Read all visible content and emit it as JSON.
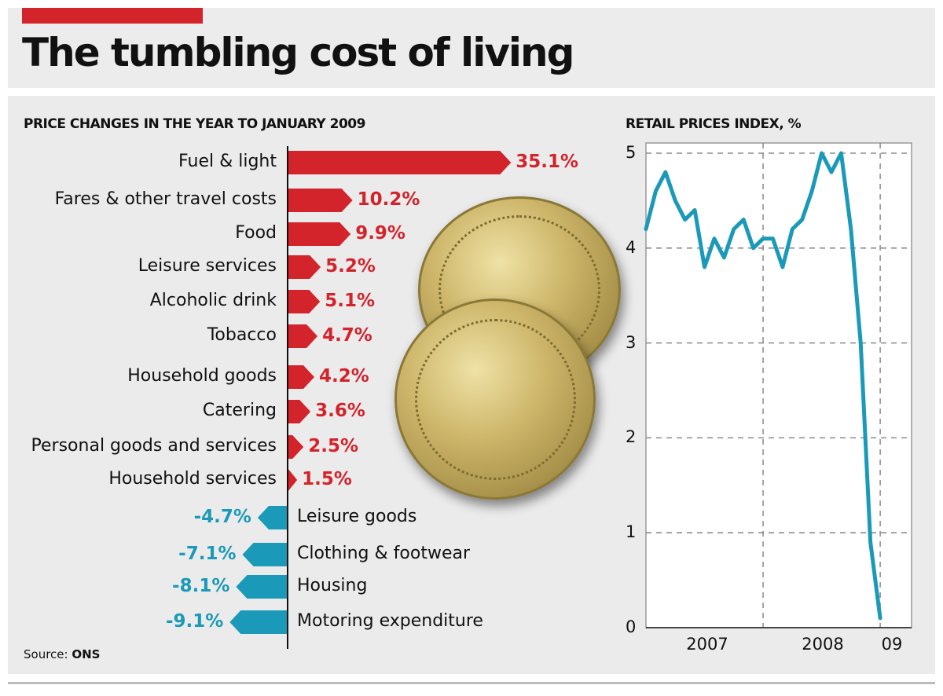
{
  "title": "The tumbling cost of living",
  "source": {
    "label": "Source:",
    "value": "ONS"
  },
  "colors": {
    "accent": "#d3232b",
    "positive": "#d3232b",
    "negative": "#1a9ab8",
    "line": "#1a9ab8"
  },
  "chart_data": [
    {
      "type": "bar",
      "orientation": "horizontal",
      "title": "PRICE CHANGES IN THE YEAR TO JANUARY 2009",
      "categories": [
        "Fuel & light",
        "Fares & other travel costs",
        "Food",
        "Leisure services",
        "Alcoholic drink",
        "Tobacco",
        "Household goods",
        "Catering",
        "Personal goods and services",
        "Household services",
        "Leisure goods",
        "Clothing & footwear",
        "Housing",
        "Motoring expenditure"
      ],
      "values": [
        35.1,
        10.2,
        9.9,
        5.2,
        5.1,
        4.7,
        4.2,
        3.6,
        2.5,
        1.5,
        -4.7,
        -7.1,
        -8.1,
        -9.1
      ],
      "labels": [
        "35.1%",
        "10.2%",
        "9.9%",
        "5.2%",
        "5.1%",
        "4.7%",
        "4.2%",
        "3.6%",
        "2.5%",
        "1.5%",
        "-4.7%",
        "-7.1%",
        "-8.1%",
        "-9.1%"
      ]
    },
    {
      "type": "line",
      "title": "RETAIL PRICES INDEX, %",
      "x": [
        "2007-01",
        "2007-02",
        "2007-03",
        "2007-04",
        "2007-05",
        "2007-06",
        "2007-07",
        "2007-08",
        "2007-09",
        "2007-10",
        "2007-11",
        "2007-12",
        "2008-01",
        "2008-02",
        "2008-03",
        "2008-04",
        "2008-05",
        "2008-06",
        "2008-07",
        "2008-08",
        "2008-09",
        "2008-10",
        "2008-11",
        "2008-12",
        "2009-01"
      ],
      "y": [
        4.2,
        4.6,
        4.8,
        4.5,
        4.3,
        4.4,
        3.8,
        4.1,
        3.9,
        4.2,
        4.3,
        4.0,
        4.1,
        4.1,
        3.8,
        4.2,
        4.3,
        4.6,
        5.0,
        4.8,
        5.0,
        4.2,
        3.0,
        0.9,
        0.1
      ],
      "ylim": [
        0,
        5
      ],
      "yticks": [
        "0",
        "1",
        "2",
        "3",
        "4",
        "5"
      ],
      "xticks": [
        "2007",
        "2008",
        "09"
      ],
      "grid": true
    }
  ]
}
